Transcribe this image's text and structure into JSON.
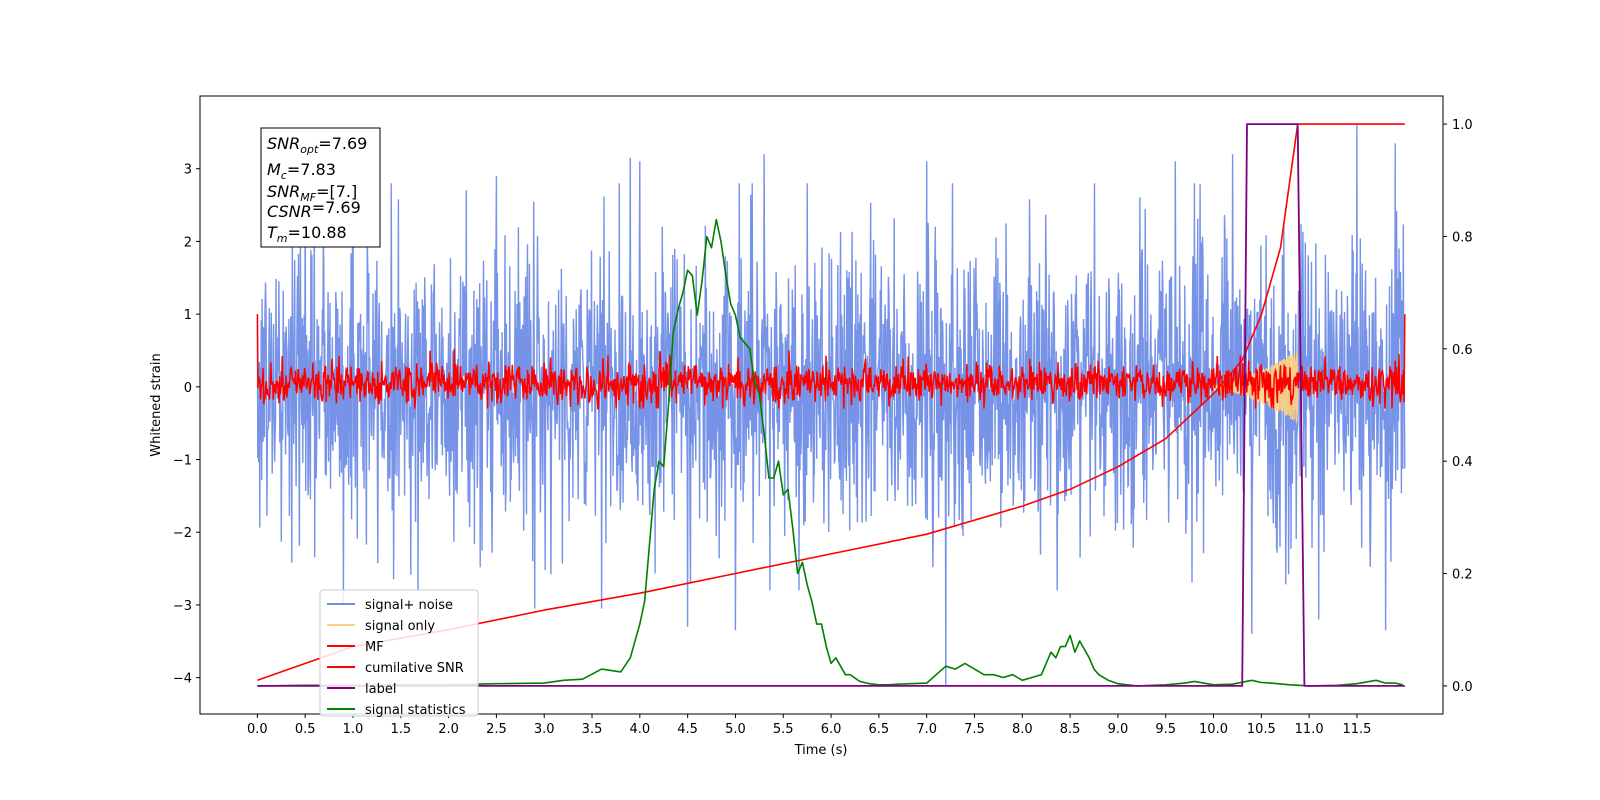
{
  "chart_data": {
    "type": "line",
    "xlabel": "Time (s)",
    "ylabel": "Whitened strain",
    "xlim": [
      -0.6,
      12.4
    ],
    "ylim": [
      -4.5,
      4.0
    ],
    "ylim_right": [
      -0.05,
      1.05
    ],
    "x_ticks": [
      "0.0",
      "0.5",
      "1.0",
      "1.5",
      "2.0",
      "2.5",
      "3.0",
      "3.5",
      "4.0",
      "4.5",
      "5.0",
      "5.5",
      "6.0",
      "6.5",
      "7.0",
      "7.5",
      "8.0",
      "8.5",
      "9.0",
      "9.5",
      "10.0",
      "10.5",
      "11.0",
      "11.5"
    ],
    "y_ticks_left": [
      "3",
      "2",
      "1",
      "0",
      "−1",
      "−2",
      "−3",
      "−4"
    ],
    "y_ticks_right": [
      "1.0",
      "0.8",
      "0.6",
      "0.4",
      "0.2",
      "0.0"
    ],
    "grid": false,
    "legend_position": "lower-left",
    "legend": [
      {
        "label": "signal+ noise",
        "color": "#6f8de6"
      },
      {
        "label": "signal only",
        "color": "#ffd27f"
      },
      {
        "label": "MF",
        "color": "#ff0000"
      },
      {
        "label": "cumilative SNR",
        "color": "#ff0000"
      },
      {
        "label": "label",
        "color": "#800080"
      },
      {
        "label": "signal statistics",
        "color": "#008000"
      }
    ],
    "annotation": {
      "lines": [
        {
          "sym": "SNR",
          "sub": "opt",
          "value": "=7.69"
        },
        {
          "sym": "M",
          "sub": "c",
          "value": "=7.83"
        },
        {
          "sym": "SNR",
          "sub": "MF",
          "value": "=[7.]"
        },
        {
          "sym": "CSNR",
          "sub": "",
          "value": "=7.69"
        },
        {
          "sym": "T",
          "sub": "m",
          "value": "=10.88"
        }
      ]
    },
    "series": [
      {
        "name": "signal+ noise",
        "axis": "left",
        "color": "#6f8de6",
        "description": "noise band",
        "x_range": [
          0.0,
          12.0
        ],
        "band_range": [
          -2.2,
          2.2
        ],
        "peaks_max": [
          [
            0.5,
            2.95
          ],
          [
            1.0,
            2.7
          ],
          [
            2.5,
            2.9
          ],
          [
            3.9,
            3.15
          ],
          [
            4.0,
            3.1
          ],
          [
            5.0,
            3.1
          ],
          [
            5.3,
            3.2
          ],
          [
            7.0,
            3.1
          ],
          [
            9.6,
            3.1
          ],
          [
            10.2,
            3.2
          ],
          [
            11.5,
            3.6
          ],
          [
            11.9,
            3.35
          ]
        ],
        "peaks_min": [
          [
            0.9,
            -3.0
          ],
          [
            2.9,
            -3.05
          ],
          [
            3.6,
            -3.05
          ],
          [
            4.5,
            -3.3
          ],
          [
            5.0,
            -3.35
          ],
          [
            7.2,
            -4.1
          ],
          [
            10.4,
            -3.4
          ],
          [
            11.1,
            -3.2
          ],
          [
            11.8,
            -3.35
          ]
        ]
      },
      {
        "name": "signal only",
        "axis": "left",
        "color": "#ffd27f",
        "description": "chirp",
        "x_range": [
          9.9,
          10.88
        ],
        "amplitude_max": 0.5
      },
      {
        "name": "MF",
        "axis": "left",
        "color": "#ff0000",
        "description": "band",
        "x_range": [
          0.0,
          12.0
        ],
        "band_range": [
          -0.25,
          0.35
        ],
        "edge_value": 1.0
      },
      {
        "name": "cumilative SNR",
        "axis": "right",
        "color": "#ff0000",
        "x": [
          0.0,
          1.0,
          2.0,
          3.0,
          4.0,
          5.0,
          6.0,
          7.0,
          8.0,
          8.5,
          9.0,
          9.5,
          10.0,
          10.3,
          10.5,
          10.7,
          10.88,
          12.0
        ],
        "y": [
          0.01,
          0.07,
          0.1,
          0.135,
          0.165,
          0.2,
          0.235,
          0.27,
          0.32,
          0.35,
          0.39,
          0.44,
          0.52,
          0.58,
          0.66,
          0.78,
          1.0,
          1.0
        ]
      },
      {
        "name": "label",
        "axis": "right",
        "color": "#800080",
        "x": [
          0.0,
          10.3,
          10.35,
          10.88,
          10.95,
          12.0
        ],
        "y": [
          0.0,
          0.0,
          1.0,
          1.0,
          0.0,
          0.0
        ]
      },
      {
        "name": "signal statistics",
        "axis": "right",
        "color": "#008000",
        "x": [
          0.0,
          0.5,
          1.0,
          1.5,
          2.0,
          2.5,
          3.0,
          3.2,
          3.4,
          3.6,
          3.8,
          3.9,
          4.0,
          4.05,
          4.1,
          4.15,
          4.2,
          4.25,
          4.3,
          4.35,
          4.4,
          4.45,
          4.5,
          4.55,
          4.6,
          4.65,
          4.7,
          4.75,
          4.8,
          4.85,
          4.9,
          4.95,
          5.0,
          5.05,
          5.1,
          5.15,
          5.2,
          5.25,
          5.3,
          5.35,
          5.4,
          5.45,
          5.5,
          5.55,
          5.6,
          5.65,
          5.7,
          5.75,
          5.8,
          5.85,
          5.9,
          5.95,
          6.0,
          6.05,
          6.1,
          6.15,
          6.2,
          6.3,
          6.4,
          6.5,
          6.6,
          6.7,
          7.0,
          7.1,
          7.2,
          7.3,
          7.4,
          7.5,
          7.6,
          7.7,
          7.8,
          7.9,
          8.0,
          8.1,
          8.2,
          8.3,
          8.35,
          8.4,
          8.45,
          8.5,
          8.55,
          8.6,
          8.65,
          8.7,
          8.75,
          8.8,
          8.9,
          9.0,
          9.2,
          9.5,
          9.7,
          9.8,
          10.0,
          10.2,
          10.4,
          10.5,
          10.6,
          10.8,
          11.0,
          11.3,
          11.5,
          11.7,
          11.8,
          11.9,
          11.98
        ],
        "y": [
          0.0,
          0.001,
          0.001,
          0.002,
          0.002,
          0.004,
          0.005,
          0.01,
          0.012,
          0.03,
          0.025,
          0.05,
          0.11,
          0.15,
          0.25,
          0.35,
          0.4,
          0.39,
          0.5,
          0.63,
          0.67,
          0.7,
          0.74,
          0.73,
          0.66,
          0.72,
          0.8,
          0.78,
          0.83,
          0.79,
          0.73,
          0.68,
          0.66,
          0.62,
          0.61,
          0.6,
          0.54,
          0.52,
          0.45,
          0.37,
          0.37,
          0.4,
          0.34,
          0.35,
          0.28,
          0.2,
          0.22,
          0.18,
          0.15,
          0.11,
          0.11,
          0.07,
          0.04,
          0.05,
          0.035,
          0.02,
          0.02,
          0.008,
          0.004,
          0.002,
          0.002,
          0.003,
          0.005,
          0.02,
          0.035,
          0.03,
          0.04,
          0.03,
          0.02,
          0.02,
          0.015,
          0.02,
          0.01,
          0.015,
          0.02,
          0.06,
          0.05,
          0.07,
          0.07,
          0.09,
          0.06,
          0.08,
          0.065,
          0.05,
          0.03,
          0.02,
          0.01,
          0.004,
          0.0,
          0.002,
          0.005,
          0.008,
          0.002,
          0.003,
          0.01,
          0.006,
          0.005,
          0.002,
          0.0,
          0.001,
          0.004,
          0.01,
          0.005,
          0.005,
          0.002
        ]
      }
    ]
  }
}
